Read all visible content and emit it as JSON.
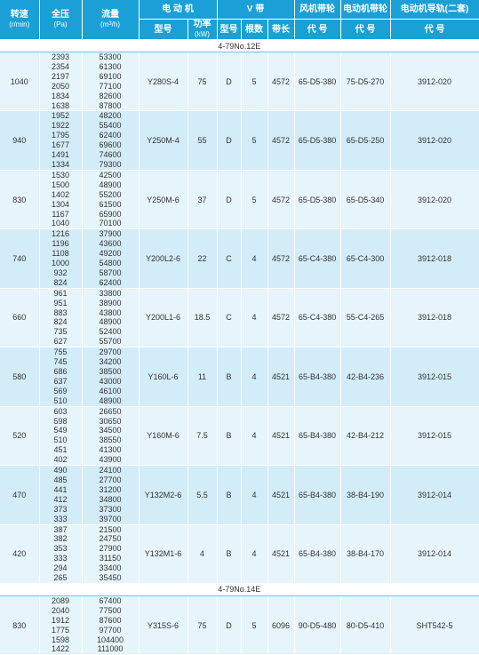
{
  "header": {
    "speed": "转速",
    "speed_unit": "(r/min)",
    "pressure": "全压",
    "pressure_unit": "(Pa)",
    "flow": "流量",
    "flow_unit_base": "(m",
    "flow_unit_sup": "3",
    "flow_unit_end": "/h)",
    "motor": "电 动 机",
    "vbelt": "V 带",
    "fan_pulley": "风机带轮",
    "motor_pulley": "电动机带轮",
    "motor_rail": "电动机导轨(二套)",
    "model": "型号",
    "power": "功率",
    "power_unit": "(kW)",
    "belt_type": "型号",
    "belt_count": "根数",
    "belt_length": "带长",
    "code1": "代 号",
    "code2": "代 号",
    "code3": "代 号"
  },
  "sections": [
    {
      "title": "4-79No.12E",
      "rows": [
        {
          "speed": "1040",
          "pressures": [
            "2393",
            "2354",
            "2197",
            "2050",
            "1834",
            "1638"
          ],
          "flows": [
            "53300",
            "61300",
            "69100",
            "77100",
            "82600",
            "87800"
          ],
          "motor_model": "Y280S-4",
          "power": "75",
          "belt_type": "D",
          "belt_count": "5",
          "belt_length": "4572",
          "fan_pulley": "65-D5-380",
          "motor_pulley": "75-D5-270",
          "rail": "3912-020"
        },
        {
          "speed": "940",
          "pressures": [
            "1952",
            "1922",
            "1795",
            "1677",
            "1491",
            "1334"
          ],
          "flows": [
            "48200",
            "55400",
            "62400",
            "69600",
            "74600",
            "79300"
          ],
          "motor_model": "Y250M-4",
          "power": "55",
          "belt_type": "D",
          "belt_count": "5",
          "belt_length": "4572",
          "fan_pulley": "65-D5-380",
          "motor_pulley": "65-D5-250",
          "rail": "3912-020"
        },
        {
          "speed": "830",
          "pressures": [
            "1530",
            "1500",
            "1402",
            "1304",
            "1167",
            "1040"
          ],
          "flows": [
            "42500",
            "48900",
            "55200",
            "61500",
            "65900",
            "70100"
          ],
          "motor_model": "Y250M-6",
          "power": "37",
          "belt_type": "D",
          "belt_count": "5",
          "belt_length": "4572",
          "fan_pulley": "65-D5-380",
          "motor_pulley": "65-D5-340",
          "rail": "3912-020"
        },
        {
          "speed": "740",
          "pressures": [
            "1216",
            "1196",
            "1108",
            "1000",
            "932",
            "824"
          ],
          "flows": [
            "37900",
            "43600",
            "49200",
            "54800",
            "58700",
            "62400"
          ],
          "motor_model": "Y200L2-6",
          "power": "22",
          "belt_type": "C",
          "belt_count": "4",
          "belt_length": "4572",
          "fan_pulley": "65-C4-380",
          "motor_pulley": "65-C4-300",
          "rail": "3912-018"
        },
        {
          "speed": "660",
          "pressures": [
            "961",
            "951",
            "883",
            "824",
            "735",
            "627"
          ],
          "flows": [
            "33800",
            "38900",
            "43800",
            "48900",
            "52400",
            "55700"
          ],
          "motor_model": "Y200L1-6",
          "power": "18.5",
          "belt_type": "C",
          "belt_count": "4",
          "belt_length": "4572",
          "fan_pulley": "65-C4-380",
          "motor_pulley": "55-C4-265",
          "rail": "3912-018"
        },
        {
          "speed": "580",
          "pressures": [
            "755",
            "745",
            "686",
            "637",
            "569",
            "510"
          ],
          "flows": [
            "29700",
            "34200",
            "38500",
            "43000",
            "46100",
            "48900"
          ],
          "motor_model": "Y160L-6",
          "power": "11",
          "belt_type": "B",
          "belt_count": "4",
          "belt_length": "4521",
          "fan_pulley": "65-B4-380",
          "motor_pulley": "42-B4-236",
          "rail": "3912-015"
        },
        {
          "speed": "520",
          "pressures": [
            "603",
            "598",
            "549",
            "510",
            "451",
            "402"
          ],
          "flows": [
            "26650",
            "30650",
            "34500",
            "38550",
            "41300",
            "43900"
          ],
          "motor_model": "Y160M-6",
          "power": "7.5",
          "belt_type": "B",
          "belt_count": "4",
          "belt_length": "4521",
          "fan_pulley": "65-B4-380",
          "motor_pulley": "42-B4-212",
          "rail": "3912-015"
        },
        {
          "speed": "470",
          "pressures": [
            "490",
            "485",
            "441",
            "412",
            "373",
            "333"
          ],
          "flows": [
            "24100",
            "27700",
            "31200",
            "34800",
            "37300",
            "39700"
          ],
          "motor_model": "Y132M2-6",
          "power": "5.5",
          "belt_type": "B",
          "belt_count": "4",
          "belt_length": "4521",
          "fan_pulley": "65-B4-380",
          "motor_pulley": "38-B4-190",
          "rail": "3912-014"
        },
        {
          "speed": "420",
          "pressures": [
            "387",
            "382",
            "353",
            "333",
            "294",
            "265"
          ],
          "flows": [
            "21500",
            "24750",
            "27900",
            "31150",
            "33400",
            "35450"
          ],
          "motor_model": "Y132M1-6",
          "power": "4",
          "belt_type": "B",
          "belt_count": "4",
          "belt_length": "4521",
          "fan_pulley": "65-B4-380",
          "motor_pulley": "38-B4-170",
          "rail": "3912-014"
        }
      ]
    },
    {
      "title": "4-79No.14E",
      "rows": [
        {
          "speed": "830",
          "pressures": [
            "2089",
            "2040",
            "1912",
            "1775",
            "1598",
            "1422"
          ],
          "flows": [
            "67400",
            "77500",
            "87600",
            "97700",
            "104400",
            "111000"
          ],
          "motor_model": "Y315S-6",
          "power": "75",
          "belt_type": "D",
          "belt_count": "5",
          "belt_length": "6096",
          "fan_pulley": "90-D5-480",
          "motor_pulley": "80-D5-410",
          "rail": "SHT542-5"
        }
      ]
    }
  ]
}
